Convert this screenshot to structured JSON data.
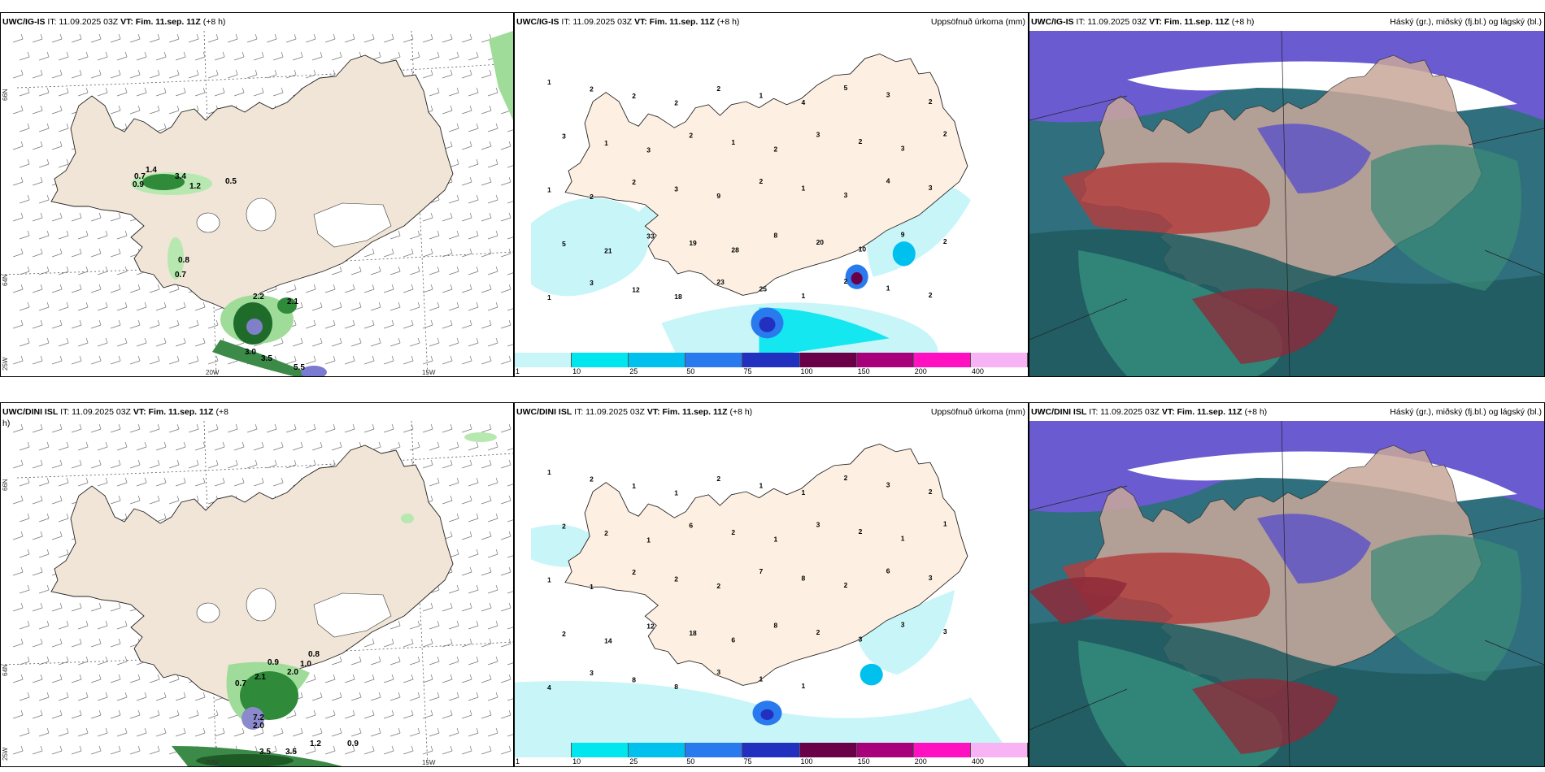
{
  "rows": [
    {
      "model": "UWC/IG-IS",
      "it": "IT: 11.09.2025 03Z",
      "vt": "VT: Fim. 11.sep. 11Z",
      "lead": "(+8 h)",
      "wind_labels": [
        {
          "t": "0.7"
        },
        {
          "t": "0.9"
        },
        {
          "t": "1.4"
        },
        {
          "t": "3.4"
        },
        {
          "t": "1.2"
        },
        {
          "t": "0.5"
        },
        {
          "t": "0.8"
        },
        {
          "t": "0.7"
        },
        {
          "t": "2.2"
        },
        {
          "t": "2.1"
        },
        {
          "t": "3.0"
        },
        {
          "t": "3.5"
        },
        {
          "t": "5.5"
        }
      ],
      "precip_labels": [
        "1",
        "2",
        "2",
        "2",
        "2",
        "1",
        "4",
        "5",
        "3",
        "2",
        "3",
        "1",
        "3",
        "2",
        "1",
        "2",
        "3",
        "2",
        "3",
        "2",
        "1",
        "2",
        "2",
        "3",
        "9",
        "2",
        "1",
        "3",
        "4",
        "3",
        "5",
        "21",
        "33",
        "19",
        "28",
        "8",
        "20",
        "10",
        "9",
        "2",
        "1",
        "3",
        "12",
        "18",
        "23",
        "25",
        "1",
        "2",
        "1",
        "2"
      ],
      "precip_title": "Uppsöfnuð úrkoma (mm)",
      "cloud_title": "Háský (gr.), miðský (fj.bl.) og lágský (bl.)"
    },
    {
      "model": "UWC/DINI ISL",
      "it": "IT: 11.09.2025 03Z",
      "vt": "VT: Fim. 11.sep. 11Z",
      "lead": "(+8 h)",
      "wind_labels": [
        {
          "t": "0.9"
        },
        {
          "t": "1.0"
        },
        {
          "t": "0.8"
        },
        {
          "t": "2.1"
        },
        {
          "t": "0.7"
        },
        {
          "t": "2.0"
        },
        {
          "t": "7.2"
        },
        {
          "t": "2.0"
        },
        {
          "t": "3.5"
        },
        {
          "t": "3.5"
        },
        {
          "t": "1.2"
        },
        {
          "t": "0.9"
        }
      ],
      "precip_labels": [
        "1",
        "2",
        "1",
        "1",
        "2",
        "1",
        "1",
        "2",
        "3",
        "2",
        "2",
        "2",
        "1",
        "6",
        "2",
        "1",
        "3",
        "2",
        "1",
        "1",
        "1",
        "1",
        "2",
        "2",
        "2",
        "7",
        "8",
        "2",
        "6",
        "3",
        "2",
        "14",
        "12",
        "18",
        "6",
        "8",
        "2",
        "3",
        "3",
        "3",
        "4",
        "3",
        "8",
        "8",
        "3",
        "1",
        "1"
      ],
      "precip_title": "Uppsöfnuð úrkoma (mm)",
      "cloud_title": "Háský (gr.), miðský (fj.bl.) og lágský (bl.)"
    }
  ],
  "grid": {
    "lat_top": "66N",
    "lat_mid": "64N",
    "lat_bot": "25W",
    "lon_a": "20W",
    "lon_b": "15W"
  },
  "colorbar": {
    "ticks": [
      "1",
      "10",
      "25",
      "50",
      "75",
      "100",
      "150",
      "200",
      "400"
    ],
    "colors": [
      "#c8f5f8",
      "#00e6ee",
      "#00c0ee",
      "#2a7aef",
      "#2230c0",
      "#6a0048",
      "#a8007a",
      "#ff10c0",
      "#f7b3f4"
    ]
  }
}
